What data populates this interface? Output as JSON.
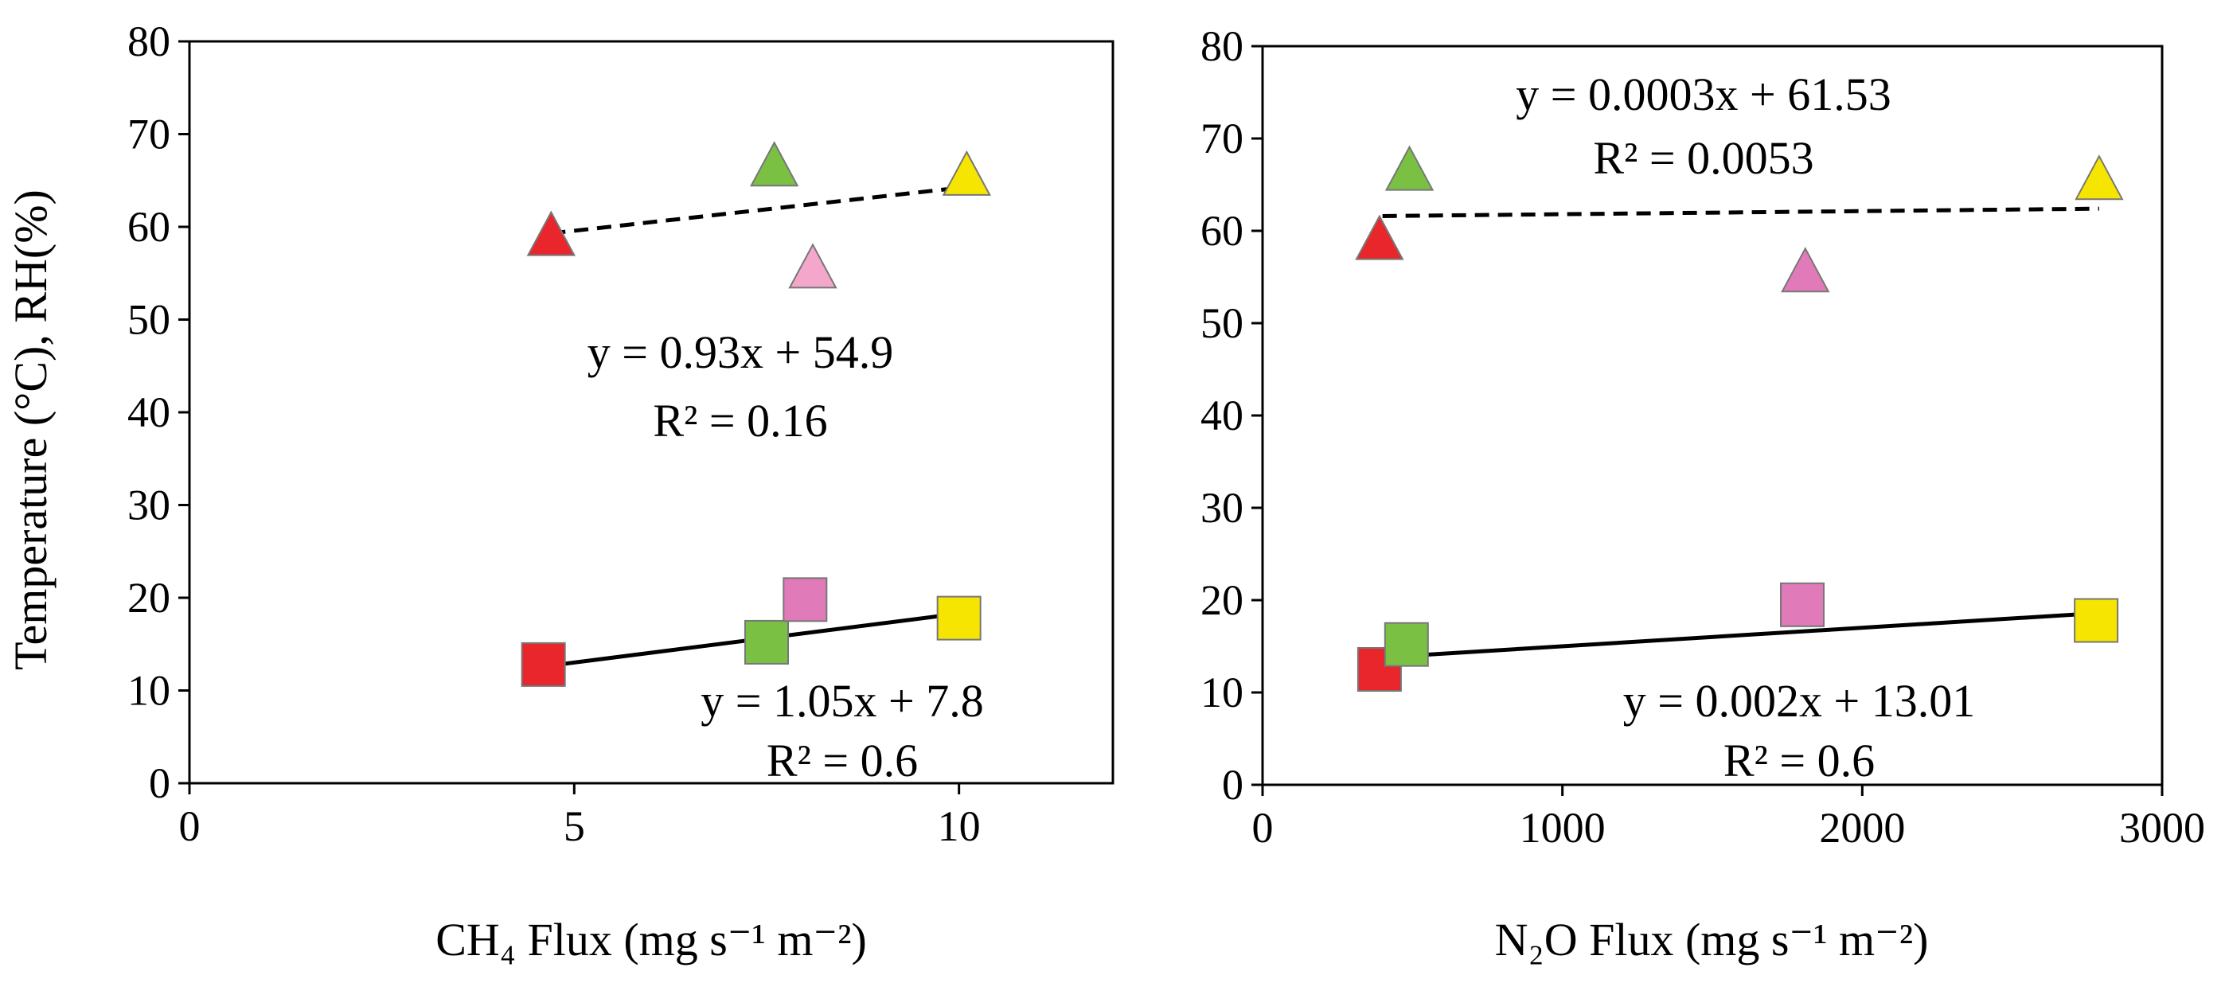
{
  "figure": {
    "ylabel": "Temperature (°C), RH(%)"
  },
  "chart_data": [
    {
      "type": "scatter",
      "xlabel": "CH₄ Flux (mg s⁻¹ m⁻²)",
      "ylabel": "Temperature (°C), RH(%)",
      "xlim": [
        0,
        12
      ],
      "ylim": [
        0,
        80
      ],
      "xticks": [
        0,
        5,
        10
      ],
      "xtick_labels": [
        "0",
        "5",
        "10"
      ],
      "yticks": [
        0,
        10,
        20,
        30,
        40,
        50,
        60,
        70,
        80
      ],
      "ytick_labels": [
        "0",
        "10",
        "20",
        "30",
        "40",
        "50",
        "60",
        "70",
        "80"
      ],
      "series": [
        {
          "name": "RH",
          "marker": "triangle",
          "points": [
            {
              "x": 4.7,
              "y": 59,
              "color": "#e8262b"
            },
            {
              "x": 7.6,
              "y": 66.5,
              "color": "#7ac143"
            },
            {
              "x": 8.1,
              "y": 55.5,
              "color": "#f4a6cb"
            },
            {
              "x": 10.1,
              "y": 65.5,
              "color": "#f5e500"
            }
          ],
          "trendline": {
            "x": [
              4.7,
              10.1
            ],
            "y": [
              59.3,
              64.3
            ],
            "style": "dashed",
            "color": "#000000"
          },
          "equation": "y = 0.93x + 54.9",
          "r2": "R² = 0.16"
        },
        {
          "name": "Temperature",
          "marker": "square",
          "points": [
            {
              "x": 4.6,
              "y": 12.8,
              "color": "#e8262b"
            },
            {
              "x": 7.5,
              "y": 15.2,
              "color": "#7ac143"
            },
            {
              "x": 8.0,
              "y": 19.8,
              "color": "#e07ab8"
            },
            {
              "x": 10.0,
              "y": 17.8,
              "color": "#f5e500"
            }
          ],
          "trendline": {
            "x": [
              4.7,
              10.1
            ],
            "y": [
              12.7,
              18.4
            ],
            "style": "solid",
            "color": "#000000"
          },
          "equation": "y = 1.05x + 7.8",
          "r2": "R² = 0.6"
        }
      ]
    },
    {
      "type": "scatter",
      "xlabel": "N₂O Flux (mg s⁻¹ m⁻²)",
      "ylabel": "",
      "xlim": [
        0,
        3000
      ],
      "ylim": [
        0,
        80
      ],
      "xticks": [
        0,
        1000,
        2000,
        3000
      ],
      "xtick_labels": [
        "0",
        "1000",
        "2000",
        "3000"
      ],
      "yticks": [
        0,
        10,
        20,
        30,
        40,
        50,
        60,
        70,
        80
      ],
      "ytick_labels": [
        "0",
        "10",
        "20",
        "30",
        "40",
        "50",
        "60",
        "70",
        "80"
      ],
      "series": [
        {
          "name": "RH",
          "marker": "triangle",
          "points": [
            {
              "x": 390,
              "y": 59,
              "color": "#e8262b"
            },
            {
              "x": 490,
              "y": 66.5,
              "color": "#7ac143"
            },
            {
              "x": 1810,
              "y": 55.5,
              "color": "#e07ab8"
            },
            {
              "x": 2790,
              "y": 65.5,
              "color": "#f5e500"
            }
          ],
          "trendline": {
            "x": [
              400,
              2790
            ],
            "y": [
              61.6,
              62.4
            ],
            "style": "dashed",
            "color": "#000000"
          },
          "equation": "y = 0.0003x + 61.53",
          "r2": "R² = 0.0053"
        },
        {
          "name": "Temperature",
          "marker": "square",
          "points": [
            {
              "x": 390,
              "y": 12.5,
              "color": "#e8262b"
            },
            {
              "x": 480,
              "y": 15.2,
              "color": "#7ac143"
            },
            {
              "x": 1800,
              "y": 19.5,
              "color": "#e07ab8"
            },
            {
              "x": 2780,
              "y": 17.8,
              "color": "#f5e500"
            }
          ],
          "trendline": {
            "x": [
              400,
              2790
            ],
            "y": [
              13.8,
              18.6
            ],
            "style": "solid",
            "color": "#000000"
          },
          "equation": "y = 0.002x + 13.01",
          "r2": "R² = 0.6"
        }
      ]
    }
  ]
}
